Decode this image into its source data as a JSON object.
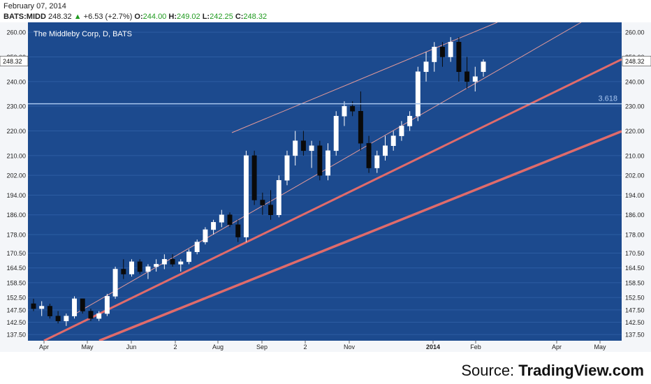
{
  "header": {
    "date": "February 07, 2014",
    "symbol": "BATS:MIDD",
    "last": "248.32",
    "change": "+6.53 (+2.7%)",
    "open_label": "O:",
    "open": "244.00",
    "high_label": "H:",
    "high": "249.02",
    "low_label": "L:",
    "low": "242.25",
    "close_label": "C:",
    "close": "248.32"
  },
  "source": {
    "prefix": "Source: ",
    "name": "TradingView.com"
  },
  "colors": {
    "background": "#1c4a8e",
    "grid": "#2d5da3",
    "up_candle": "#ffffff",
    "down_candle": "#0a0a0a",
    "fib_line": "#a9c7f0",
    "trend_thick": "#e06b6b",
    "trend_thin": "#e39a9a",
    "up_text": "#1f9a1f"
  },
  "chart_data": {
    "type": "candlestick",
    "title": "The Middleby Corp, D, BATS",
    "ylim": [
      135,
      264
    ],
    "y_ticks": [
      "137.50",
      "142.50",
      "147.50",
      "152.50",
      "158.50",
      "164.50",
      "170.50",
      "178.00",
      "186.00",
      "194.00",
      "202.00",
      "210.00",
      "220.00",
      "230.00",
      "240.00",
      "250.00",
      "260.00"
    ],
    "x_ticks": [
      "Apr",
      "May",
      "Jun",
      "2",
      "Aug",
      "Sep",
      "2",
      "Nov",
      "2014",
      "Feb",
      "Apr",
      "May"
    ],
    "last_price_label": "248.32",
    "fib_level": {
      "label": "3.618",
      "value": 231
    },
    "trendlines": [
      "lower thick channel",
      "upper thick channel",
      "thin rising channel"
    ],
    "candles_approx": [
      [
        150,
        152,
        147,
        148
      ],
      [
        148,
        151,
        145,
        149
      ],
      [
        149,
        150,
        144,
        145
      ],
      [
        145,
        147,
        142,
        143
      ],
      [
        143,
        146,
        141,
        145
      ],
      [
        145,
        153,
        144,
        152
      ],
      [
        152,
        152,
        146,
        147
      ],
      [
        147,
        148,
        143,
        144
      ],
      [
        144,
        147,
        143,
        146
      ],
      [
        146,
        154,
        145,
        153
      ],
      [
        153,
        165,
        152,
        164
      ],
      [
        164,
        168,
        160,
        162
      ],
      [
        162,
        168,
        161,
        167
      ],
      [
        167,
        168,
        162,
        163
      ],
      [
        163,
        166,
        160,
        165
      ],
      [
        165,
        168,
        163,
        166
      ],
      [
        166,
        170,
        164,
        168
      ],
      [
        168,
        170,
        165,
        166
      ],
      [
        166,
        168,
        163,
        167
      ],
      [
        167,
        172,
        166,
        171
      ],
      [
        171,
        176,
        170,
        175
      ],
      [
        175,
        181,
        174,
        180
      ],
      [
        180,
        184,
        178,
        183
      ],
      [
        183,
        188,
        181,
        186
      ],
      [
        186,
        187,
        181,
        182
      ],
      [
        182,
        184,
        175,
        177
      ],
      [
        177,
        212,
        175,
        210
      ],
      [
        210,
        212,
        190,
        192
      ],
      [
        192,
        195,
        186,
        190
      ],
      [
        190,
        196,
        184,
        186
      ],
      [
        186,
        202,
        185,
        200
      ],
      [
        200,
        212,
        198,
        210
      ],
      [
        210,
        220,
        206,
        216
      ],
      [
        216,
        220,
        210,
        212
      ],
      [
        212,
        216,
        205,
        214
      ],
      [
        214,
        216,
        200,
        202
      ],
      [
        202,
        215,
        200,
        212
      ],
      [
        212,
        228,
        210,
        226
      ],
      [
        226,
        232,
        222,
        230
      ],
      [
        230,
        232,
        226,
        228
      ],
      [
        228,
        236,
        212,
        215
      ],
      [
        215,
        218,
        203,
        205
      ],
      [
        205,
        212,
        203,
        210
      ],
      [
        210,
        218,
        208,
        214
      ],
      [
        214,
        220,
        212,
        218
      ],
      [
        218,
        224,
        216,
        222
      ],
      [
        222,
        228,
        220,
        226
      ],
      [
        226,
        246,
        224,
        244
      ],
      [
        244,
        252,
        240,
        248
      ],
      [
        248,
        256,
        244,
        254
      ],
      [
        254,
        256,
        246,
        250
      ],
      [
        250,
        258,
        248,
        256
      ],
      [
        256,
        258,
        240,
        244
      ],
      [
        244,
        250,
        237,
        240
      ],
      [
        240,
        246,
        236,
        242
      ],
      [
        244,
        249,
        242,
        248
      ]
    ]
  }
}
